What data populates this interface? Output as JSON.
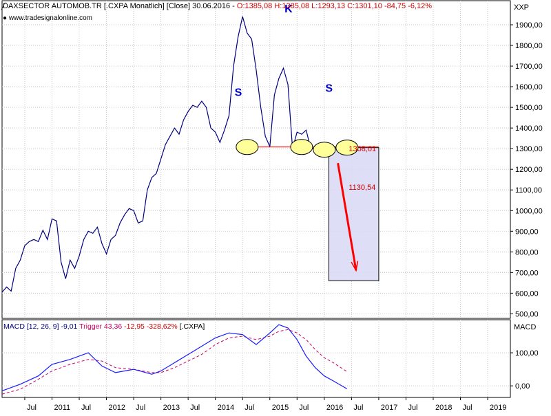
{
  "header": {
    "instrument": "DAXSECTOR AUTOMOB.TR [.CXPA  Monatlich] [Close] 30.06.2016 - ",
    "ohlc": "O:1385,08 H:1385,08 L:1293,13 C:1301,10 -84,75 -6,12%",
    "source": "www.tradesignalonline.com",
    "symbol": "XXP"
  },
  "macd_header": {
    "main": "MACD [12, 26, 9] -9,01 ",
    "trigger": "Trigger 43,36 ",
    "diff": "-12,95 -328,62% ",
    "symbol": "[.CXPA]",
    "axis_label": "MACD"
  },
  "colors": {
    "price_line": "#000080",
    "macd_line": "#1a1aff",
    "trigger_line": "#cc0066",
    "support_line": "#ff0000",
    "target_arrow": "#ff0000",
    "target_box_fill": "#d8d8f4",
    "target_box_stroke": "#000000",
    "marker_fill": "#ffff99",
    "pattern_letters": "#0000cc",
    "grid": "#c8c8c8",
    "ohlc_text": "#cc0000"
  },
  "chart_data": [
    {
      "type": "line",
      "title": "DAXSECTOR AUTOMOB.TR",
      "x_axis_type": "date",
      "x_tick_labels": [
        "Jul",
        "2011",
        "Jul",
        "2012",
        "Jul",
        "2013",
        "Jul",
        "2014",
        "Jul",
        "2015",
        "Jul",
        "2016",
        "Jul",
        "2017",
        "Jul",
        "2018",
        "Jul",
        "2019"
      ],
      "x_tick_dates": [
        "2010-07",
        "2011-01",
        "2011-07",
        "2012-01",
        "2012-07",
        "2013-01",
        "2013-07",
        "2014-01",
        "2014-07",
        "2015-01",
        "2015-07",
        "2016-01",
        "2016-07",
        "2017-01",
        "2017-07",
        "2018-01",
        "2018-07",
        "2019-01"
      ],
      "x_range": [
        "2010-02",
        "2019-06"
      ],
      "y_ticks": [
        500,
        600,
        700,
        800,
        900,
        1000,
        1100,
        1200,
        1300,
        1400,
        1500,
        1600,
        1700,
        1800,
        1900
      ],
      "y_tick_labels": [
        "500,00",
        "600,00",
        "700,00",
        "800,00",
        "900,00",
        "1000,00",
        "1100,00",
        "1200,00",
        "1300,00",
        "1400,00",
        "1500,00",
        "1600,00",
        "1700,00",
        "1800,00",
        "1900,00"
      ],
      "ylim": [
        478,
        2020
      ],
      "grid": true,
      "series": [
        {
          "x": [
            "2010-02",
            "2010-03",
            "2010-04",
            "2010-05",
            "2010-06",
            "2010-07",
            "2010-08",
            "2010-09",
            "2010-10",
            "2010-11",
            "2010-12",
            "2011-01",
            "2011-02",
            "2011-03",
            "2011-04",
            "2011-05",
            "2011-06",
            "2011-07",
            "2011-08",
            "2011-09",
            "2011-10",
            "2011-11",
            "2011-12",
            "2012-01",
            "2012-02",
            "2012-03",
            "2012-04",
            "2012-05",
            "2012-06",
            "2012-07",
            "2012-08",
            "2012-09",
            "2012-10",
            "2012-11",
            "2012-12",
            "2013-01",
            "2013-02",
            "2013-03",
            "2013-04",
            "2013-05",
            "2013-06",
            "2013-07",
            "2013-08",
            "2013-09",
            "2013-10",
            "2013-11",
            "2013-12",
            "2014-01",
            "2014-02",
            "2014-03",
            "2014-04",
            "2014-05",
            "2014-06",
            "2014-07",
            "2014-08",
            "2014-09",
            "2014-10",
            "2014-11",
            "2014-12",
            "2015-01",
            "2015-02",
            "2015-03",
            "2015-04",
            "2015-05",
            "2015-06",
            "2015-07",
            "2015-08",
            "2015-09",
            "2015-10",
            "2015-11",
            "2015-12",
            "2016-01",
            "2016-02",
            "2016-03",
            "2016-04",
            "2016-05",
            "2016-06"
          ],
          "values": [
            605,
            630,
            610,
            720,
            760,
            830,
            850,
            860,
            850,
            905,
            860,
            960,
            950,
            750,
            670,
            760,
            720,
            780,
            860,
            900,
            890,
            920,
            840,
            790,
            860,
            880,
            940,
            980,
            1010,
            1000,
            940,
            950,
            1100,
            1160,
            1180,
            1250,
            1320,
            1360,
            1400,
            1370,
            1440,
            1480,
            1510,
            1500,
            1530,
            1500,
            1400,
            1380,
            1330,
            1390,
            1460,
            1700,
            1840,
            1940,
            1860,
            1830,
            1680,
            1500,
            1360,
            1310,
            1560,
            1640,
            1690,
            1610,
            1300,
            1380,
            1370,
            1390,
            1301,
            1301,
            1301,
            1301,
            1301,
            1301,
            1301,
            1301,
            1301
          ]
        },
        {
          "name": "Target",
          "x": [
            "2016-04",
            "2016-08"
          ],
          "values": [
            1230,
            710
          ]
        }
      ],
      "annotations": [
        {
          "text": "S",
          "x": "2014-06",
          "y": 1555,
          "note": "left shoulder"
        },
        {
          "text": "K",
          "x": "2015-05",
          "y": 1960,
          "note": "head"
        },
        {
          "text": "S",
          "x": "2016-02",
          "y": 1575,
          "note": "right shoulder"
        },
        {
          "text": "1308,01",
          "x": "2016-07",
          "y": 1288
        },
        {
          "text": "1130,54",
          "x": "2016-07",
          "y": 1100
        }
      ],
      "neckline": {
        "value": 1308.01,
        "from": "2014-07",
        "to": "2017-01"
      },
      "markers": [
        {
          "x": "2014-08",
          "y": 1308
        },
        {
          "x": "2015-08",
          "y": 1308
        },
        {
          "x": "2016-01",
          "y": 1295
        },
        {
          "x": "2016-06",
          "y": 1305
        }
      ],
      "target_box": {
        "x_from": "2016-02",
        "x_to": "2017-01",
        "y_from": 660,
        "y_to": 1305
      }
    },
    {
      "type": "line",
      "title": "MACD [12, 26, 9]",
      "y_ticks": [
        0,
        100
      ],
      "y_tick_labels": [
        "0,00",
        "100,00"
      ],
      "ylim": [
        -35,
        200
      ],
      "grid": true,
      "series": [
        {
          "name": "MACD",
          "x": [
            "2010-02",
            "2010-06",
            "2010-10",
            "2011-01",
            "2011-05",
            "2011-09",
            "2011-12",
            "2012-03",
            "2012-07",
            "2012-11",
            "2013-01",
            "2013-04",
            "2013-07",
            "2013-10",
            "2014-01",
            "2014-04",
            "2014-07",
            "2014-10",
            "2015-01",
            "2015-03",
            "2015-05",
            "2015-07",
            "2015-09",
            "2015-11",
            "2016-01",
            "2016-03",
            "2016-06"
          ],
          "values": [
            -15,
            5,
            30,
            65,
            80,
            100,
            60,
            40,
            50,
            35,
            45,
            70,
            95,
            120,
            145,
            160,
            155,
            125,
            160,
            185,
            175,
            140,
            90,
            55,
            30,
            15,
            -9
          ]
        },
        {
          "name": "Trigger",
          "x": [
            "2010-02",
            "2010-06",
            "2010-10",
            "2011-01",
            "2011-05",
            "2011-09",
            "2011-12",
            "2012-03",
            "2012-07",
            "2012-11",
            "2013-01",
            "2013-04",
            "2013-07",
            "2013-10",
            "2014-01",
            "2014-04",
            "2014-07",
            "2014-10",
            "2015-01",
            "2015-03",
            "2015-05",
            "2015-07",
            "2015-09",
            "2015-11",
            "2016-01",
            "2016-03",
            "2016-06"
          ],
          "values": [
            -25,
            -10,
            20,
            45,
            65,
            80,
            75,
            55,
            50,
            40,
            40,
            55,
            75,
            95,
            125,
            145,
            150,
            140,
            150,
            165,
            170,
            160,
            140,
            110,
            85,
            70,
            43
          ]
        }
      ]
    }
  ]
}
